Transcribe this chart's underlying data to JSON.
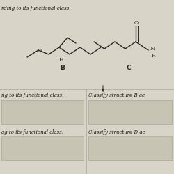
{
  "background_color": "#d8d4c8",
  "mol_color": "#2a2520",
  "font_color": "#1a1510",
  "label_B": "B",
  "label_C": "C",
  "title_text": "rding to its functional class.",
  "text_row1_left": "ng to its functional class.",
  "text_row1_right": "Classify structure B ac",
  "text_row2_left": "ag to its functional class.",
  "text_row2_right": "Classify structure D ac",
  "box_facecolor": "#c8c4b4",
  "box_edgecolor": "#aaa89a",
  "divider_color": "#aaa898"
}
